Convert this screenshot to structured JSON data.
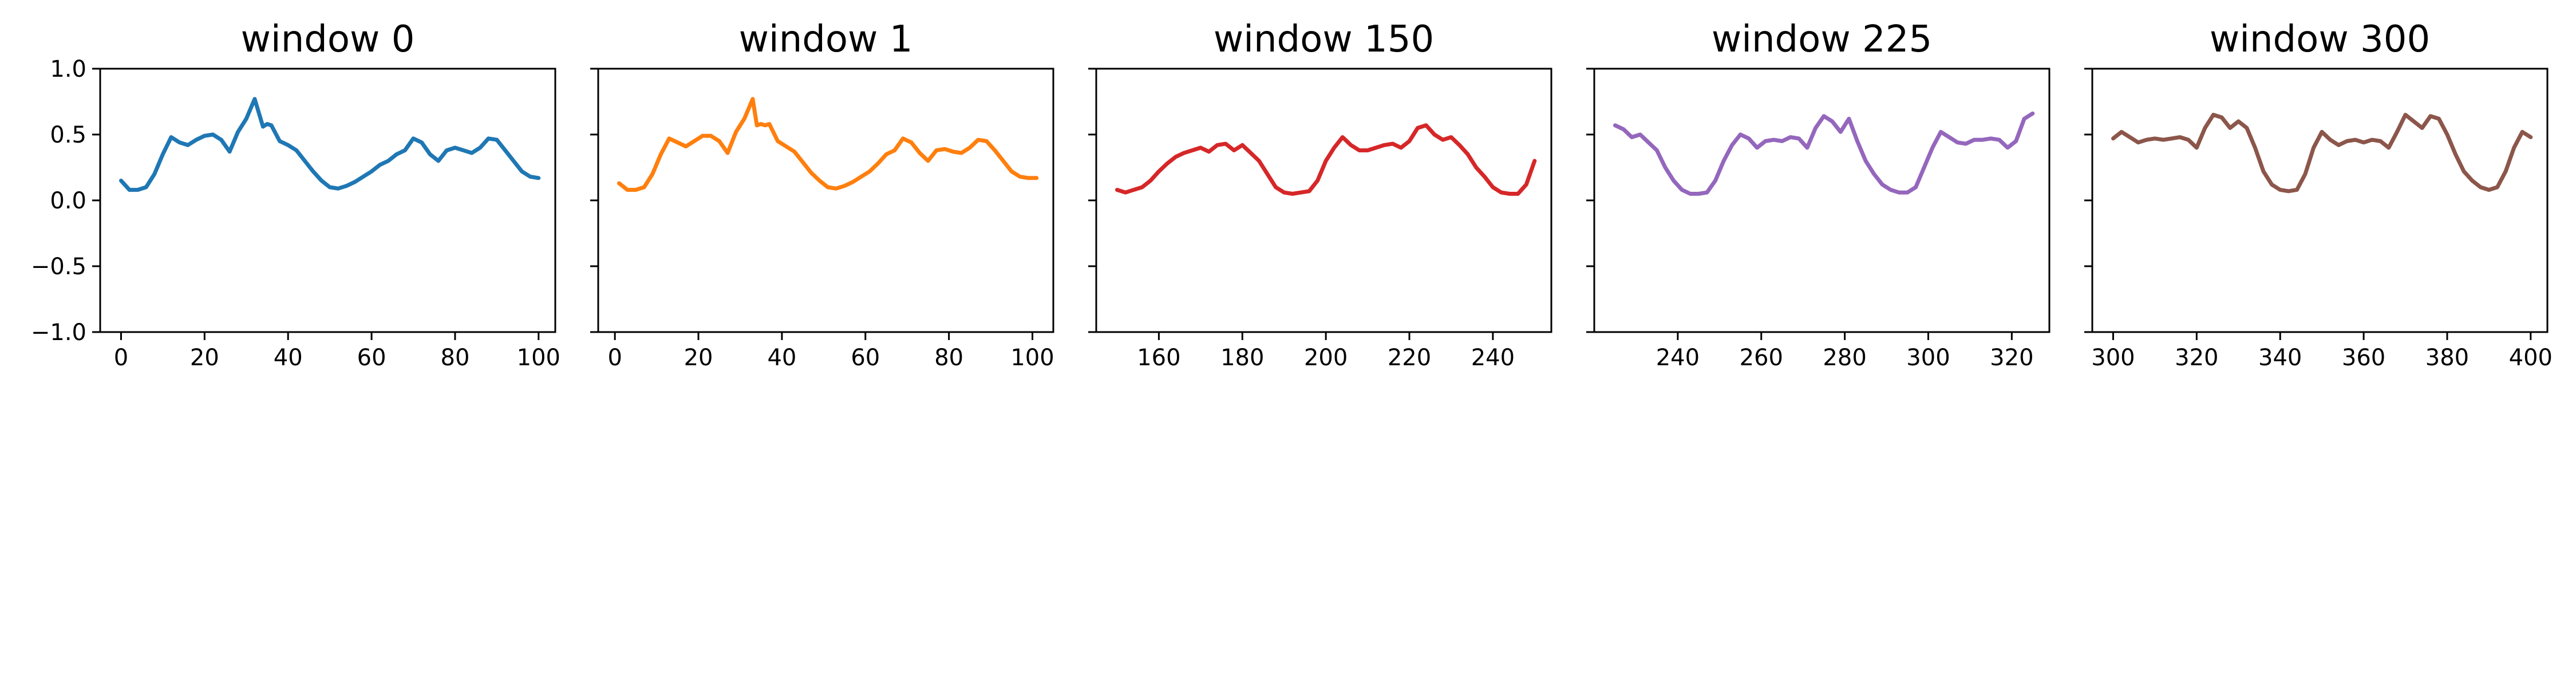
{
  "chart_data": [
    {
      "type": "line",
      "title": "window 0",
      "color": "#1f77b4",
      "xlim": [
        -5,
        104
      ],
      "ylim": [
        -1.0,
        1.0
      ],
      "xticks": [
        0,
        20,
        40,
        60,
        80,
        100
      ],
      "xtick_labels": [
        "0",
        "20",
        "40",
        "60",
        "80",
        "100"
      ],
      "yticks": [
        1.0,
        0.5,
        0.0,
        -0.5,
        -1.0
      ],
      "ytick_labels": [
        "1.0",
        "0.5",
        "0.0",
        "−0.5",
        "−1.0"
      ],
      "series": [
        {
          "x": [
            0,
            2,
            4,
            6,
            8,
            10,
            12,
            14,
            16,
            18,
            20,
            22,
            24,
            26,
            28,
            30,
            32,
            34,
            35,
            36,
            38,
            40,
            42,
            44,
            46,
            48,
            50,
            52,
            54,
            56,
            58,
            60,
            62,
            64,
            66,
            68,
            70,
            72,
            74,
            76,
            78,
            80,
            82,
            84,
            86,
            88,
            90,
            92,
            94,
            96,
            98,
            100
          ],
          "y": [
            0.15,
            0.08,
            0.08,
            0.1,
            0.2,
            0.35,
            0.48,
            0.44,
            0.42,
            0.46,
            0.49,
            0.5,
            0.46,
            0.37,
            0.52,
            0.62,
            0.77,
            0.56,
            0.58,
            0.57,
            0.45,
            0.42,
            0.38,
            0.3,
            0.22,
            0.15,
            0.1,
            0.09,
            0.11,
            0.14,
            0.18,
            0.22,
            0.27,
            0.3,
            0.35,
            0.38,
            0.47,
            0.44,
            0.35,
            0.3,
            0.38,
            0.4,
            0.38,
            0.36,
            0.4,
            0.47,
            0.46,
            0.38,
            0.3,
            0.22,
            0.18,
            0.17
          ]
        }
      ]
    },
    {
      "type": "line",
      "title": "window 1",
      "color": "#ff7f0e",
      "xlim": [
        -4,
        105
      ],
      "ylim": [
        -1.0,
        1.0
      ],
      "xticks": [
        0,
        20,
        40,
        60,
        80,
        100
      ],
      "xtick_labels": [
        "0",
        "20",
        "40",
        "60",
        "80",
        "100"
      ],
      "yticks": [
        1.0,
        0.5,
        0.0,
        -0.5,
        -1.0
      ],
      "ytick_labels": [
        "",
        "",
        "",
        "",
        ""
      ],
      "series": [
        {
          "x": [
            1,
            3,
            5,
            7,
            9,
            11,
            13,
            15,
            17,
            19,
            21,
            23,
            25,
            27,
            29,
            31,
            33,
            34,
            35,
            36,
            37,
            39,
            41,
            43,
            45,
            47,
            49,
            51,
            53,
            55,
            57,
            59,
            61,
            63,
            65,
            67,
            69,
            71,
            73,
            75,
            77,
            79,
            81,
            83,
            85,
            87,
            89,
            91,
            93,
            95,
            97,
            99,
            101
          ],
          "y": [
            0.13,
            0.08,
            0.08,
            0.1,
            0.2,
            0.35,
            0.47,
            0.44,
            0.41,
            0.45,
            0.49,
            0.49,
            0.45,
            0.36,
            0.52,
            0.62,
            0.77,
            0.57,
            0.58,
            0.57,
            0.58,
            0.45,
            0.41,
            0.37,
            0.29,
            0.21,
            0.15,
            0.1,
            0.09,
            0.11,
            0.14,
            0.18,
            0.22,
            0.28,
            0.35,
            0.38,
            0.47,
            0.44,
            0.36,
            0.3,
            0.38,
            0.39,
            0.37,
            0.36,
            0.4,
            0.46,
            0.45,
            0.38,
            0.3,
            0.22,
            0.18,
            0.17,
            0.17
          ]
        }
      ]
    },
    {
      "type": "line",
      "title": "window 150",
      "color": "#d62728",
      "xlim": [
        145,
        254
      ],
      "ylim": [
        -1.0,
        1.0
      ],
      "xticks": [
        160,
        180,
        200,
        220,
        240
      ],
      "xtick_labels": [
        "160",
        "180",
        "200",
        "220",
        "240"
      ],
      "yticks": [
        1.0,
        0.5,
        0.0,
        -0.5,
        -1.0
      ],
      "ytick_labels": [
        "",
        "",
        "",
        "",
        ""
      ],
      "series": [
        {
          "x": [
            150,
            152,
            154,
            156,
            158,
            160,
            162,
            164,
            166,
            168,
            170,
            172,
            174,
            176,
            178,
            180,
            182,
            184,
            186,
            188,
            190,
            192,
            194,
            196,
            198,
            200,
            202,
            204,
            206,
            208,
            210,
            212,
            214,
            216,
            218,
            220,
            222,
            224,
            226,
            228,
            230,
            232,
            234,
            236,
            238,
            240,
            242,
            244,
            246,
            248,
            250
          ],
          "y": [
            0.08,
            0.06,
            0.08,
            0.1,
            0.15,
            0.22,
            0.28,
            0.33,
            0.36,
            0.38,
            0.4,
            0.37,
            0.42,
            0.43,
            0.38,
            0.42,
            0.36,
            0.3,
            0.2,
            0.1,
            0.06,
            0.05,
            0.06,
            0.07,
            0.15,
            0.3,
            0.4,
            0.48,
            0.42,
            0.38,
            0.38,
            0.4,
            0.42,
            0.43,
            0.4,
            0.45,
            0.55,
            0.57,
            0.5,
            0.46,
            0.48,
            0.42,
            0.35,
            0.25,
            0.18,
            0.1,
            0.06,
            0.05,
            0.05,
            0.12,
            0.3
          ]
        }
      ]
    },
    {
      "type": "line",
      "title": "window 225",
      "color": "#9467bd",
      "xlim": [
        220,
        329
      ],
      "ylim": [
        -1.0,
        1.0
      ],
      "xticks": [
        240,
        260,
        280,
        300,
        320
      ],
      "xtick_labels": [
        "240",
        "260",
        "280",
        "300",
        "320"
      ],
      "yticks": [
        1.0,
        0.5,
        0.0,
        -0.5,
        -1.0
      ],
      "ytick_labels": [
        "",
        "",
        "",
        "",
        ""
      ],
      "series": [
        {
          "x": [
            225,
            227,
            229,
            231,
            233,
            235,
            237,
            239,
            241,
            243,
            245,
            247,
            249,
            251,
            253,
            255,
            257,
            259,
            261,
            263,
            265,
            267,
            269,
            271,
            273,
            275,
            277,
            279,
            281,
            283,
            285,
            287,
            289,
            291,
            293,
            295,
            297,
            299,
            301,
            303,
            305,
            307,
            309,
            311,
            313,
            315,
            317,
            319,
            321,
            323,
            325
          ],
          "y": [
            0.57,
            0.54,
            0.48,
            0.5,
            0.44,
            0.38,
            0.25,
            0.15,
            0.08,
            0.05,
            0.05,
            0.06,
            0.15,
            0.3,
            0.42,
            0.5,
            0.47,
            0.4,
            0.45,
            0.46,
            0.45,
            0.48,
            0.47,
            0.4,
            0.55,
            0.64,
            0.6,
            0.52,
            0.62,
            0.45,
            0.3,
            0.2,
            0.12,
            0.08,
            0.06,
            0.06,
            0.1,
            0.25,
            0.4,
            0.52,
            0.48,
            0.44,
            0.43,
            0.46,
            0.46,
            0.47,
            0.46,
            0.4,
            0.45,
            0.62,
            0.66
          ]
        }
      ]
    },
    {
      "type": "line",
      "title": "window 300",
      "color": "#8c564b",
      "xlim": [
        295,
        404
      ],
      "ylim": [
        -1.0,
        1.0
      ],
      "xticks": [
        300,
        320,
        340,
        360,
        380,
        400
      ],
      "xtick_labels": [
        "300",
        "320",
        "340",
        "360",
        "380",
        "400"
      ],
      "yticks": [
        1.0,
        0.5,
        0.0,
        -0.5,
        -1.0
      ],
      "ytick_labels": [
        "",
        "",
        "",
        "",
        ""
      ],
      "series": [
        {
          "x": [
            300,
            302,
            304,
            306,
            308,
            310,
            312,
            314,
            316,
            318,
            320,
            322,
            324,
            326,
            328,
            330,
            332,
            334,
            336,
            338,
            340,
            342,
            344,
            346,
            348,
            350,
            352,
            354,
            356,
            358,
            360,
            362,
            364,
            366,
            368,
            370,
            372,
            374,
            376,
            378,
            380,
            382,
            384,
            386,
            388,
            390,
            392,
            394,
            396,
            398,
            400
          ],
          "y": [
            0.47,
            0.52,
            0.48,
            0.44,
            0.46,
            0.47,
            0.46,
            0.47,
            0.48,
            0.46,
            0.4,
            0.55,
            0.65,
            0.63,
            0.55,
            0.6,
            0.55,
            0.4,
            0.22,
            0.12,
            0.08,
            0.07,
            0.08,
            0.2,
            0.4,
            0.52,
            0.46,
            0.42,
            0.45,
            0.46,
            0.44,
            0.46,
            0.45,
            0.4,
            0.52,
            0.65,
            0.6,
            0.55,
            0.64,
            0.62,
            0.5,
            0.35,
            0.22,
            0.15,
            0.1,
            0.08,
            0.1,
            0.22,
            0.4,
            0.52,
            0.48
          ]
        }
      ]
    }
  ]
}
